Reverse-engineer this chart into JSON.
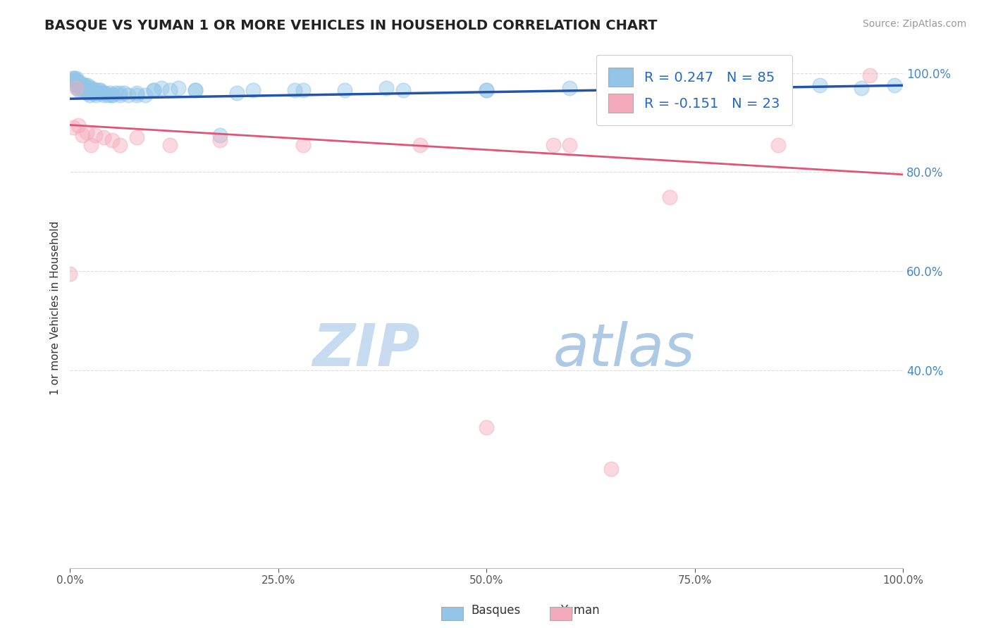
{
  "title": "BASQUE VS YUMAN 1 OR MORE VEHICLES IN HOUSEHOLD CORRELATION CHART",
  "source": "Source: ZipAtlas.com",
  "ylabel": "1 or more Vehicles in Household",
  "xlim": [
    0.0,
    1.0
  ],
  "ylim": [
    0.0,
    1.05
  ],
  "xtick_pos": [
    0.0,
    0.25,
    0.5,
    0.75,
    1.0
  ],
  "xtick_labels": [
    "0.0%",
    "25.0%",
    "50.0%",
    "75.0%",
    "100.0%"
  ],
  "ytick_pos": [
    0.4,
    0.6,
    0.8,
    1.0
  ],
  "ytick_labels": [
    "40.0%",
    "60.0%",
    "80.0%",
    "100.0%"
  ],
  "legend_line1": "R = 0.247   N = 85",
  "legend_line2": "R = -0.151   N = 23",
  "blue_color": "#92C5E8",
  "pink_color": "#F5AABB",
  "blue_line_color": "#2255AA",
  "pink_line_color": "#E05575",
  "watermark_zip": "ZIP",
  "watermark_atlas": "atlas",
  "watermark_color_zip": "#C5DCF0",
  "watermark_color_atlas": "#A8C8E8",
  "grid_color": "#DDDDDD",
  "blue_scatter_x": [
    0.003,
    0.004,
    0.005,
    0.006,
    0.007,
    0.008,
    0.009,
    0.01,
    0.011,
    0.012,
    0.013,
    0.014,
    0.015,
    0.016,
    0.017,
    0.018,
    0.019,
    0.02,
    0.021,
    0.022,
    0.023,
    0.024,
    0.025,
    0.026,
    0.027,
    0.028,
    0.029,
    0.03,
    0.032,
    0.034,
    0.036,
    0.038,
    0.04,
    0.042,
    0.045,
    0.048,
    0.05,
    0.055,
    0.06,
    0.065,
    0.07,
    0.08,
    0.09,
    0.1,
    0.11,
    0.12,
    0.13,
    0.15,
    0.18,
    0.22,
    0.27,
    0.33,
    0.4,
    0.5,
    0.6,
    0.7,
    0.8,
    0.9,
    0.95,
    0.99,
    0.005,
    0.007,
    0.009,
    0.011,
    0.013,
    0.015,
    0.017,
    0.019,
    0.021,
    0.023,
    0.025,
    0.028,
    0.031,
    0.035,
    0.04,
    0.05,
    0.06,
    0.08,
    0.1,
    0.15,
    0.2,
    0.28,
    0.38,
    0.5,
    0.65
  ],
  "blue_scatter_y": [
    0.99,
    0.985,
    0.99,
    0.985,
    0.99,
    0.985,
    0.98,
    0.975,
    0.98,
    0.975,
    0.98,
    0.975,
    0.97,
    0.975,
    0.97,
    0.975,
    0.97,
    0.965,
    0.975,
    0.97,
    0.965,
    0.97,
    0.965,
    0.97,
    0.965,
    0.96,
    0.965,
    0.96,
    0.965,
    0.96,
    0.965,
    0.96,
    0.955,
    0.96,
    0.955,
    0.96,
    0.955,
    0.96,
    0.955,
    0.96,
    0.955,
    0.96,
    0.955,
    0.965,
    0.97,
    0.965,
    0.97,
    0.965,
    0.875,
    0.965,
    0.965,
    0.965,
    0.965,
    0.965,
    0.97,
    0.965,
    0.97,
    0.975,
    0.97,
    0.975,
    0.985,
    0.975,
    0.97,
    0.965,
    0.97,
    0.965,
    0.97,
    0.965,
    0.96,
    0.955,
    0.965,
    0.96,
    0.955,
    0.965,
    0.96,
    0.955,
    0.96,
    0.955,
    0.965,
    0.965,
    0.96,
    0.965,
    0.97,
    0.965,
    0.965
  ],
  "pink_scatter_x": [
    0.004,
    0.007,
    0.01,
    0.015,
    0.02,
    0.025,
    0.03,
    0.04,
    0.06,
    0.08,
    0.12,
    0.18,
    0.28,
    0.42,
    0.58,
    0.72,
    0.85,
    0.96,
    0.0,
    0.5,
    0.65,
    0.6,
    0.05
  ],
  "pink_scatter_y": [
    0.89,
    0.97,
    0.895,
    0.875,
    0.88,
    0.855,
    0.875,
    0.87,
    0.855,
    0.87,
    0.855,
    0.865,
    0.855,
    0.855,
    0.855,
    0.75,
    0.855,
    0.995,
    0.595,
    0.285,
    0.2,
    0.855,
    0.865
  ],
  "blue_trendline_x": [
    0.0,
    1.0
  ],
  "blue_trendline_y": [
    0.948,
    0.975
  ],
  "pink_trendline_x": [
    0.0,
    1.0
  ],
  "pink_trendline_y": [
    0.895,
    0.795
  ]
}
